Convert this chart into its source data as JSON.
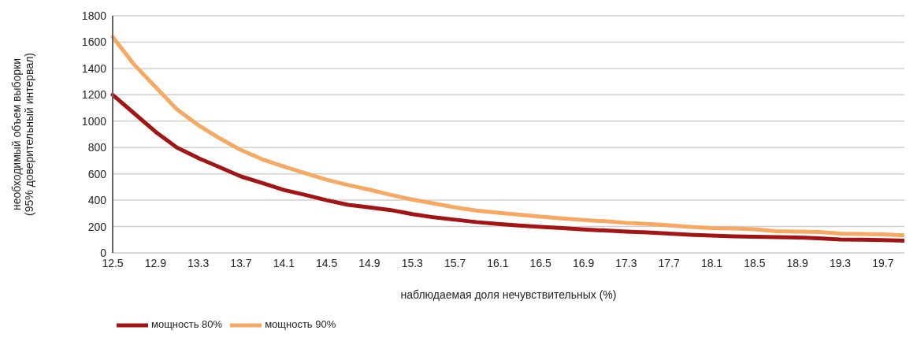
{
  "chart_data": {
    "type": "line",
    "xlabel": "наблюдаемая доля нечувствительных (%)",
    "ylabel": "необходимый объем выборки\n(95% доверительный интервал)",
    "categories": [
      "12.5",
      null,
      "12.9",
      null,
      "13.3",
      null,
      "13.7",
      null,
      "14.1",
      null,
      "14.5",
      null,
      "14.9",
      null,
      "15.3",
      null,
      "15.7",
      null,
      "16.1",
      null,
      "16.5",
      null,
      "16.9",
      null,
      "17.3",
      null,
      "17.7",
      null,
      "18.1",
      null,
      "18.5",
      null,
      "18.9",
      null,
      "19.3",
      null,
      "19.7",
      null
    ],
    "series": [
      {
        "name": "мощность 80%",
        "color": "#a31515",
        "values": [
          1200,
          1060,
          920,
          800,
          720,
          650,
          580,
          530,
          478,
          440,
          400,
          365,
          345,
          325,
          295,
          270,
          252,
          234,
          220,
          208,
          198,
          188,
          178,
          170,
          162,
          155,
          146,
          138,
          132,
          126,
          122,
          119,
          117,
          110,
          102,
          100,
          97,
          92
        ]
      },
      {
        "name": "мощность 90%",
        "color": "#f5a962",
        "values": [
          1640,
          1430,
          1260,
          1090,
          970,
          870,
          780,
          710,
          655,
          605,
          555,
          515,
          480,
          440,
          405,
          375,
          345,
          322,
          305,
          290,
          275,
          262,
          250,
          240,
          228,
          220,
          210,
          198,
          188,
          185,
          180,
          165,
          162,
          158,
          147,
          143,
          140,
          133
        ]
      }
    ],
    "ylim": [
      0,
      1800
    ],
    "yticks": [
      0,
      200,
      400,
      600,
      800,
      1000,
      1200,
      1400,
      1600,
      1800
    ],
    "grid": "y",
    "legend": "bottom",
    "marker": "none",
    "line_style": "solid"
  }
}
